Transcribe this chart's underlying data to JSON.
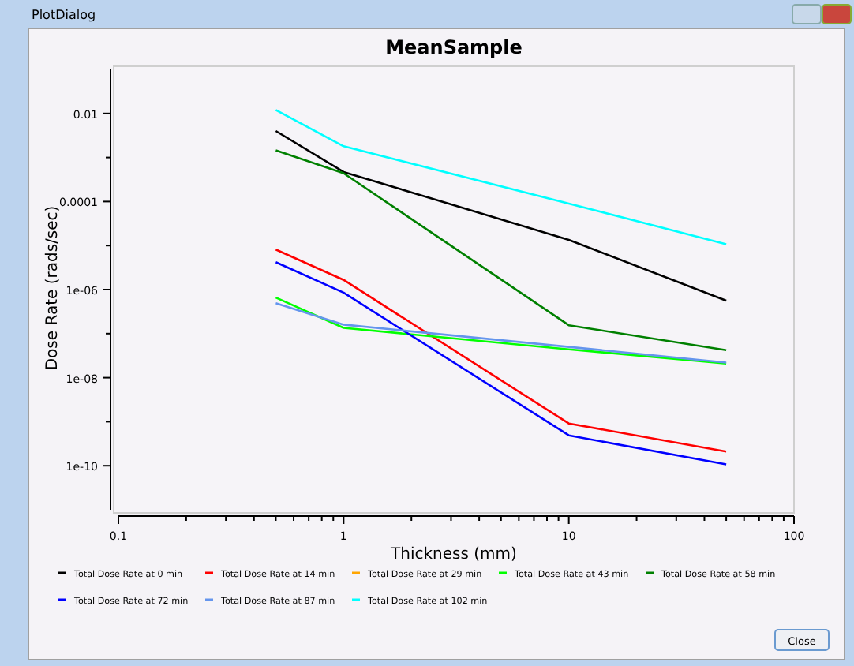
{
  "chart_data": {
    "type": "line",
    "title": "MeanSample",
    "xlabel": "Thickness (mm)",
    "ylabel": "Dose Rate (rads/sec)",
    "log": "xy",
    "grid": false,
    "legend": "bottom",
    "line_style": "solid",
    "annotations": [
      "PlotDialog",
      "Close"
    ],
    "x": [
      0.5,
      1,
      10,
      50
    ],
    "xlim": [
      0.1,
      100
    ],
    "xticks": [
      0.1,
      {
        "value": 0.2,
        "label": null
      },
      {
        "value": 0.3,
        "label": null
      },
      {
        "value": 0.4,
        "label": null
      },
      {
        "value": 0.5,
        "label": null
      },
      {
        "value": 0.6,
        "label": null
      },
      {
        "value": 0.7,
        "label": null
      },
      {
        "value": 0.8,
        "label": null
      },
      {
        "value": 0.9,
        "label": null
      },
      1,
      {
        "value": 2,
        "label": null
      },
      {
        "value": 3,
        "label": null
      },
      {
        "value": 4,
        "label": null
      },
      {
        "value": 5,
        "label": null
      },
      {
        "value": 6,
        "label": null
      },
      {
        "value": 7,
        "label": null
      },
      {
        "value": 8,
        "label": null
      },
      {
        "value": 9,
        "label": null
      },
      10,
      {
        "value": 20,
        "label": null
      },
      {
        "value": 30,
        "label": null
      },
      {
        "value": 40,
        "label": null
      },
      {
        "value": 50,
        "label": null
      },
      {
        "value": 60,
        "label": null
      },
      {
        "value": 70,
        "label": null
      },
      {
        "value": 80,
        "label": null
      },
      {
        "value": 90,
        "label": null
      },
      100
    ],
    "ylim": [
      1e-11,
      0.1
    ],
    "yticks": [
      {
        "value": 1e-10,
        "label": "1e-10"
      },
      {
        "value": 1e-09,
        "label": null
      },
      {
        "value": 1e-08,
        "label": "1e-08"
      },
      {
        "value": 1e-07,
        "label": null
      },
      {
        "value": 1e-06,
        "label": "1e-06"
      },
      {
        "value": 1e-05,
        "label": null
      },
      0.0001,
      {
        "value": 0.001,
        "label": null
      },
      0.01
    ],
    "series": [
      {
        "name": "Total Dose Rate at 0 min",
        "color": "#000000",
        "values": [
          0.004,
          0.00047,
          1.35e-05,
          5.6e-07
        ]
      },
      {
        "name": "Total Dose Rate at 14 min",
        "color": "#ff0000",
        "values": [
          8.1e-06,
          1.66e-06,
          9.1e-10,
          2.1e-10
        ]
      },
      {
        "name": "Total Dose Rate at 29 min",
        "color": "#ffa500",
        "values": [
          null,
          null,
          null,
          null
        ]
      },
      {
        "name": "Total Dose Rate at 43 min",
        "color": "#00ff00",
        "values": [
          6.6e-07,
          1.35e-07,
          4.4e-08,
          2.1e-08
        ]
      },
      {
        "name": "Total Dose Rate at 58 min",
        "color": "#008000",
        "values": [
          0.00146,
          0.00044,
          1.55e-07,
          4.2e-08
        ]
      },
      {
        "name": "Total Dose Rate at 72 min",
        "color": "#0000ff",
        "values": [
          4.2e-06,
          8.5e-07,
          4.9e-10,
          1.07e-10
        ]
      },
      {
        "name": "Total Dose Rate at 87 min",
        "color": "#6495ed",
        "values": [
          4.9e-07,
          1.6e-07,
          5e-08,
          2.2e-08
        ]
      },
      {
        "name": "Total Dose Rate at 102 min",
        "color": "#00ffff",
        "values": [
          0.012,
          0.0018,
          9e-05,
          1.07e-05
        ]
      }
    ]
  }
}
